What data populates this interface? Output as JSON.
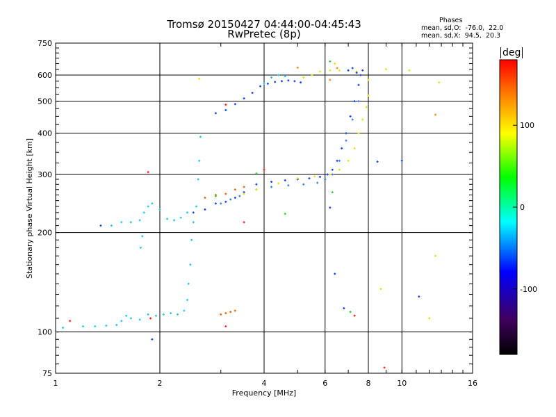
{
  "title_line1": "Tromsø 20150427 04:44:00-04:45:43",
  "title_line2": "RwPretec (8p)",
  "stats": {
    "heading": "Phases",
    "o_mode": "mean, sd,O:  -76.0,  22.0",
    "x_mode": "mean, sd,X:  94.5,  20.3"
  },
  "colorbar": {
    "unit": "deg",
    "ticks": [
      "100",
      "0",
      "-100"
    ],
    "tick_values": [
      100,
      0,
      -100
    ],
    "range": [
      -180,
      180
    ]
  },
  "chart_data": {
    "type": "scatter",
    "title": "Tromsø 20150427 04:44:00-04:45:43",
    "subtitle": "RwPretec (8p)",
    "xlabel": "Frequency [MHz]",
    "ylabel": "Stationary phase Virtual Height [km]",
    "xscale": "log",
    "yscale": "log",
    "xlim": [
      1,
      16
    ],
    "ylim": [
      75,
      750
    ],
    "x_ticks": [
      1,
      2,
      4,
      6,
      8,
      10,
      16
    ],
    "x_tick_labels": [
      "1",
      "2",
      "4",
      "6",
      "8",
      "10",
      "16"
    ],
    "y_ticks": [
      75,
      100,
      200,
      300,
      400,
      500,
      600,
      750
    ],
    "y_tick_labels": [
      "75",
      "100",
      "200",
      "300",
      "400",
      "500",
      "600",
      "750"
    ],
    "grid": true,
    "color_encodes": "phase (deg)",
    "series": [
      {
        "color": "#29c6e0",
        "points": [
          [
            1.05,
            103
          ],
          [
            1.2,
            104
          ],
          [
            1.3,
            104
          ],
          [
            1.4,
            104.5
          ],
          [
            1.5,
            105
          ],
          [
            1.55,
            108
          ],
          [
            1.6,
            112
          ],
          [
            1.65,
            110
          ],
          [
            1.75,
            109
          ],
          [
            1.85,
            113
          ],
          [
            1.95,
            112
          ],
          [
            2.05,
            113
          ],
          [
            2.15,
            114
          ],
          [
            2.25,
            113
          ],
          [
            2.35,
            116
          ],
          [
            2.4,
            125
          ],
          [
            2.42,
            140
          ],
          [
            2.45,
            160
          ],
          [
            2.47,
            190
          ],
          [
            2.5,
            215
          ],
          [
            2.55,
            240
          ],
          [
            2.58,
            290
          ],
          [
            2.6,
            330
          ],
          [
            2.62,
            390
          ]
        ]
      },
      {
        "color": "#29c6e0",
        "points": [
          [
            1.45,
            210
          ],
          [
            1.55,
            215
          ],
          [
            1.65,
            215
          ],
          [
            1.75,
            218
          ],
          [
            1.8,
            230
          ],
          [
            1.78,
            195
          ],
          [
            1.76,
            180
          ],
          [
            1.85,
            240
          ],
          [
            1.9,
            245
          ],
          [
            2.0,
            235
          ],
          [
            2.1,
            220
          ],
          [
            2.2,
            218
          ],
          [
            2.3,
            222
          ],
          [
            2.4,
            230
          ]
        ]
      },
      {
        "color": "#1846e6",
        "points": [
          [
            2.5,
            230
          ],
          [
            2.7,
            235
          ],
          [
            2.9,
            245
          ],
          [
            3.1,
            248
          ],
          [
            3.3,
            255
          ],
          [
            3.5,
            265
          ],
          [
            3.8,
            280
          ],
          [
            4.2,
            285
          ],
          [
            4.6,
            288
          ],
          [
            5.0,
            290
          ],
          [
            5.4,
            292
          ],
          [
            5.8,
            295
          ],
          [
            6.1,
            300
          ],
          [
            6.3,
            310
          ],
          [
            6.5,
            330
          ],
          [
            6.7,
            360
          ],
          [
            6.9,
            400
          ],
          [
            7.1,
            450
          ],
          [
            7.3,
            500
          ],
          [
            7.5,
            560
          ],
          [
            7.7,
            620
          ]
        ]
      },
      {
        "color": "#3a7ee8",
        "points": [
          [
            3.0,
            245
          ],
          [
            3.2,
            252
          ],
          [
            3.4,
            258
          ],
          [
            3.8,
            270
          ],
          [
            4.2,
            275
          ],
          [
            4.7,
            278
          ],
          [
            5.2,
            280
          ],
          [
            5.7,
            283
          ],
          [
            6.0,
            290
          ],
          [
            6.3,
            300
          ],
          [
            6.6,
            330
          ],
          [
            6.9,
            380
          ],
          [
            7.2,
            440
          ],
          [
            7.5,
            500
          ]
        ]
      },
      {
        "color": "#e8e01a",
        "points": [
          [
            3.5,
            262
          ],
          [
            3.8,
            270
          ],
          [
            4.4,
            282
          ],
          [
            5.0,
            292
          ],
          [
            5.6,
            296
          ],
          [
            6.2,
            300
          ],
          [
            6.6,
            310
          ],
          [
            7.0,
            330
          ],
          [
            7.3,
            360
          ],
          [
            7.5,
            400
          ],
          [
            7.7,
            440
          ],
          [
            7.9,
            480
          ],
          [
            8.0,
            520
          ],
          [
            8.0,
            580
          ]
        ]
      },
      {
        "color": "#1846e6",
        "points": [
          [
            2.9,
            460
          ],
          [
            3.1,
            470
          ],
          [
            3.3,
            490
          ],
          [
            3.5,
            510
          ],
          [
            3.7,
            530
          ],
          [
            3.9,
            555
          ],
          [
            4.1,
            565
          ],
          [
            4.3,
            572
          ],
          [
            4.5,
            575
          ],
          [
            4.7,
            578
          ],
          [
            4.9,
            575
          ],
          [
            5.1,
            570
          ]
        ]
      },
      {
        "color": "#29c6e0",
        "points": [
          [
            4.0,
            565
          ],
          [
            4.2,
            590
          ],
          [
            4.4,
            600
          ],
          [
            4.6,
            595
          ]
        ]
      },
      {
        "color": "#e8e01a",
        "points": [
          [
            5.2,
            590
          ],
          [
            5.5,
            600
          ],
          [
            5.8,
            615
          ],
          [
            6.2,
            620
          ],
          [
            6.6,
            620
          ],
          [
            7.0,
            620
          ],
          [
            7.4,
            615
          ]
        ]
      },
      {
        "color": "#1846e6",
        "points": [
          [
            7.0,
            620
          ],
          [
            7.2,
            630
          ],
          [
            7.4,
            610
          ],
          [
            7.6,
            600
          ]
        ]
      },
      {
        "color": "#e8640e",
        "points": [
          [
            3.0,
            113
          ],
          [
            3.1,
            114
          ],
          [
            3.2,
            115
          ],
          [
            3.3,
            116
          ]
        ]
      },
      {
        "color": "#e8640e",
        "points": [
          [
            2.7,
            255
          ],
          [
            2.9,
            260
          ],
          [
            3.1,
            262
          ],
          [
            3.3,
            270
          ],
          [
            3.5,
            275
          ]
        ]
      },
      {
        "color": "#ff2020",
        "points": [
          [
            1.1,
            108
          ],
          [
            3.1,
            104
          ],
          [
            3.5,
            215
          ],
          [
            1.85,
            305
          ],
          [
            1.88,
            110
          ],
          [
            3.1,
            488
          ],
          [
            4.0,
            310
          ],
          [
            8.9,
            78
          ],
          [
            7.3,
            112
          ]
        ]
      },
      {
        "color": "#33cc33",
        "points": [
          [
            4.6,
            228
          ],
          [
            6.3,
            265
          ],
          [
            7.1,
            115
          ],
          [
            6.2,
            660
          ],
          [
            2.9,
            258
          ],
          [
            3.8,
            302
          ]
        ]
      },
      {
        "color": "#1846e6",
        "points": [
          [
            1.35,
            210
          ],
          [
            6.2,
            238
          ],
          [
            6.4,
            150
          ],
          [
            8.5,
            328
          ],
          [
            10.0,
            330
          ],
          [
            11.2,
            128
          ],
          [
            1.9,
            95
          ],
          [
            6.8,
            118
          ]
        ]
      },
      {
        "color": "#e8e01a",
        "points": [
          [
            6.4,
            650
          ],
          [
            10.5,
            620
          ],
          [
            12.0,
            110
          ],
          [
            2.6,
            585
          ],
          [
            8.7,
            135
          ],
          [
            9.0,
            625
          ],
          [
            12.8,
            570
          ],
          [
            12.5,
            170
          ]
        ]
      },
      {
        "color": "#f08a1a",
        "points": [
          [
            5.0,
            632
          ],
          [
            6.2,
            580
          ],
          [
            12.5,
            455
          ],
          [
            6.5,
            630
          ]
        ]
      }
    ]
  }
}
